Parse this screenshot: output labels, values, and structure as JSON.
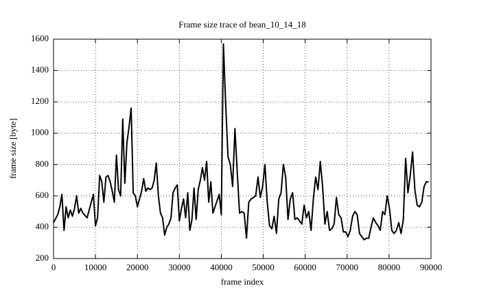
{
  "chart_data": {
    "type": "line",
    "title": "Frame size trace of bean_10_14_18",
    "xlabel": "frame index",
    "ylabel": "frame size [byte]",
    "color": "#000000",
    "grid": true,
    "xlim": [
      0,
      90000
    ],
    "ylim": [
      200,
      1600
    ],
    "xticks": [
      0,
      10000,
      20000,
      30000,
      40000,
      50000,
      60000,
      70000,
      80000,
      90000
    ],
    "yticks": [
      200,
      400,
      600,
      800,
      1000,
      1200,
      1400,
      1600
    ],
    "x": [
      0,
      1000,
      1500,
      2000,
      2500,
      3000,
      3500,
      4000,
      4500,
      5000,
      5500,
      6000,
      6500,
      7000,
      8000,
      9000,
      9500,
      10000,
      10500,
      11000,
      11500,
      12000,
      12500,
      13000,
      13500,
      14000,
      14500,
      15000,
      15500,
      16000,
      16500,
      17000,
      17500,
      18000,
      18500,
      19000,
      19500,
      20000,
      20500,
      21000,
      21500,
      22000,
      22500,
      23000,
      23500,
      24000,
      24500,
      25000,
      25500,
      26000,
      26500,
      27000,
      27500,
      28000,
      28500,
      29000,
      29500,
      30000,
      30500,
      31000,
      31500,
      32000,
      32500,
      33000,
      33500,
      34000,
      34500,
      35000,
      35500,
      36000,
      36500,
      37000,
      37500,
      38000,
      38500,
      39000,
      39500,
      40000,
      40500,
      41050,
      41600,
      42150,
      42700,
      43250,
      43800,
      44350,
      44900,
      45450,
      46000,
      46550,
      47100,
      47650,
      48200,
      48750,
      49300,
      49850,
      50400,
      50950,
      51500,
      52050,
      52600,
      53150,
      53700,
      54250,
      54800,
      55350,
      55900,
      56450,
      57000,
      57550,
      58100,
      58650,
      59200,
      59750,
      60300,
      60850,
      61400,
      61950,
      62500,
      63050,
      63600,
      64150,
      64700,
      65250,
      65800,
      66350,
      66900,
      67450,
      68000,
      68550,
      69100,
      69650,
      70200,
      70750,
      71300,
      71850,
      72400,
      72950,
      73500,
      74050,
      74600,
      75150,
      75700,
      76250,
      76800,
      77350,
      77900,
      78450,
      79000,
      79550,
      80100,
      80650,
      81200,
      81750,
      82300,
      82850,
      83400,
      83950,
      84500,
      85050,
      85600,
      86150,
      86700,
      87250,
      87800,
      88350,
      88900,
      89450
    ],
    "values": [
      430,
      480,
      530,
      610,
      380,
      530,
      460,
      510,
      470,
      520,
      600,
      490,
      520,
      490,
      460,
      560,
      610,
      410,
      460,
      730,
      690,
      560,
      720,
      730,
      690,
      630,
      560,
      860,
      640,
      600,
      1090,
      680,
      940,
      1040,
      1160,
      620,
      600,
      530,
      580,
      630,
      710,
      630,
      650,
      640,
      650,
      700,
      810,
      600,
      490,
      460,
      350,
      400,
      420,
      460,
      620,
      650,
      670,
      440,
      520,
      580,
      460,
      620,
      380,
      450,
      650,
      450,
      640,
      700,
      780,
      700,
      820,
      560,
      690,
      490,
      530,
      570,
      610,
      480,
      1570,
      1180,
      850,
      800,
      660,
      1030,
      750,
      490,
      500,
      490,
      330,
      560,
      580,
      590,
      600,
      720,
      590,
      660,
      800,
      560,
      410,
      390,
      470,
      360,
      580,
      620,
      800,
      720,
      450,
      580,
      620,
      450,
      460,
      440,
      420,
      540,
      460,
      500,
      380,
      580,
      720,
      640,
      820,
      660,
      420,
      500,
      380,
      390,
      420,
      590,
      480,
      460,
      370,
      370,
      340,
      380,
      470,
      500,
      480,
      360,
      340,
      320,
      330,
      330,
      400,
      460,
      430,
      410,
      380,
      500,
      480,
      600,
      520,
      380,
      360,
      380,
      430,
      360,
      450,
      840,
      620,
      730,
      880,
      640,
      540,
      530,
      560,
      660,
      690,
      690
    ]
  }
}
